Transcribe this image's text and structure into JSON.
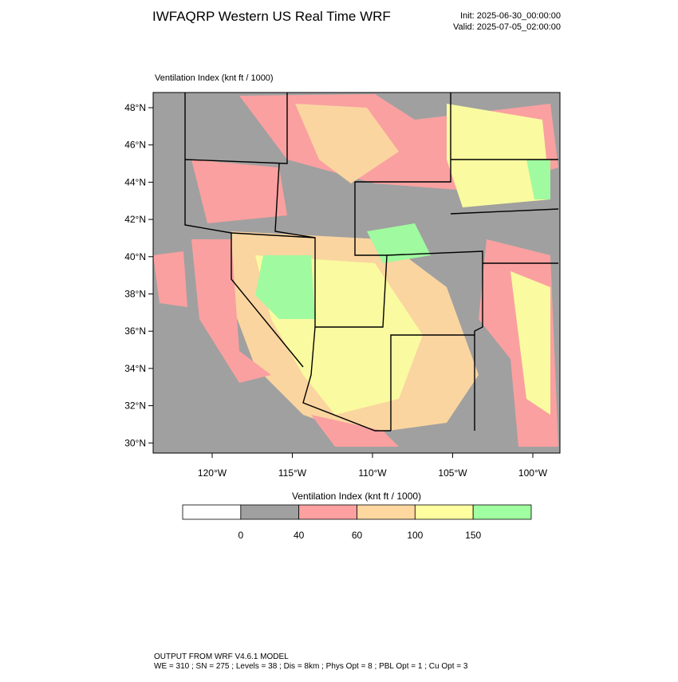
{
  "header": {
    "title": "IWFAQRP Western US Real Time WRF",
    "init": "Init: 2025-06-30_00:00:00",
    "valid": "Valid: 2025-07-05_02:00:00"
  },
  "map": {
    "label": "Ventilation Index   (knt ft / 1000)",
    "lat_ticks": [
      "48°N",
      "46°N",
      "44°N",
      "42°N",
      "40°N",
      "38°N",
      "36°N",
      "34°N",
      "32°N",
      "30°N"
    ],
    "lon_ticks": [
      "120°W",
      "115°W",
      "110°W",
      "105°W",
      "100°W"
    ]
  },
  "colorbar": {
    "title": "Ventilation Index   (knt ft / 1000)",
    "colors": [
      "#ffffff",
      "#a0a0a0",
      "#ffa0a0",
      "#ffd8a0",
      "#ffff a0",
      "#a0ffa0"
    ],
    "labels": [
      "0",
      "40",
      "60",
      "100",
      "150"
    ]
  },
  "footer": {
    "line1": "OUTPUT FROM WRF V4.6.1 MODEL",
    "line2": "WE = 310 ; SN = 275 ; Levels = 38 ; Dis = 8km ; Phys Opt = 8 ; PBL Opt = 1 ; Cu Opt = 3"
  }
}
